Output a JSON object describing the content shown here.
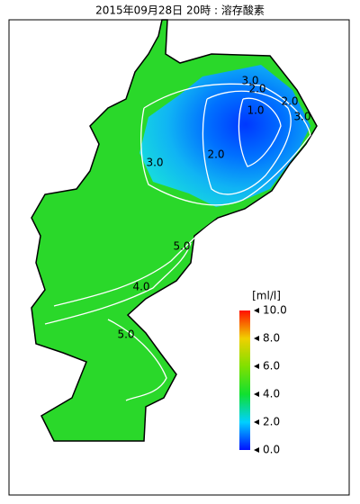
{
  "title": "2015年09月28日 20時 : 溶存酸素",
  "contour_labels": [
    "3.0",
    "2.0",
    "2.0",
    "1.0",
    "3.0",
    "3.0",
    "2.0",
    "5.0",
    "4.0",
    "5.0"
  ],
  "colorbar": {
    "unit": "[ml/l]",
    "range": [
      0,
      10
    ],
    "ticks": [
      {
        "value": 0,
        "label": "0.0"
      },
      {
        "value": 2,
        "label": "2.0"
      },
      {
        "value": 4,
        "label": "4.0"
      },
      {
        "value": 6,
        "label": "6.0"
      },
      {
        "value": 8,
        "label": "8.0"
      },
      {
        "value": 10,
        "label": "10.0"
      }
    ]
  }
}
